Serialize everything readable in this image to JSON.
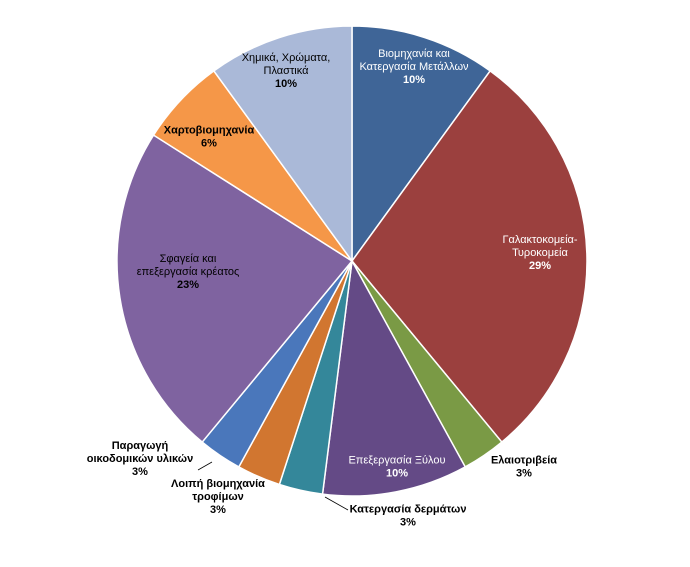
{
  "chart_data": {
    "type": "pie",
    "title": "",
    "slices": [
      {
        "label": "Βιομηχανία και Κατεργασία Μετάλλων",
        "lines": [
          "Βιομηχανία και",
          "Κατεργασία Μετάλλων"
        ],
        "pct_label": "10%",
        "value": 10,
        "color": "#3f6597",
        "label_color": "#ffffff",
        "bold": false
      },
      {
        "label": "Γαλακτοκομεία-Τυροκομεία",
        "lines": [
          "Γαλακτοκομεία-",
          "Τυροκομεία"
        ],
        "pct_label": "29%",
        "value": 29,
        "color": "#9b403e",
        "label_color": "#ffffff",
        "bold": false
      },
      {
        "label": "Ελαιοτριβεία",
        "lines": [
          "Ελαιοτριβεία"
        ],
        "pct_label": "3%",
        "value": 3,
        "color": "#7a9a45",
        "label_color": "#000000",
        "bold": true
      },
      {
        "label": "Επεξεργασία Ξύλου",
        "lines": [
          "Επεξεργασία Ξύλου"
        ],
        "pct_label": "10%",
        "value": 10,
        "color": "#644a86",
        "label_color": "#ffffff",
        "bold": false
      },
      {
        "label": "Κατεργασία δερμάτων",
        "lines": [
          "Κατεργασία δερμάτων"
        ],
        "pct_label": "3%",
        "value": 3,
        "color": "#34879a",
        "label_color": "#000000",
        "bold": true
      },
      {
        "label": "Λοιπή βιομηχανία τροφίμων",
        "lines": [
          "Λοιπή βιομηχανία",
          "τροφίμων"
        ],
        "pct_label": "3%",
        "value": 3,
        "color": "#d17630",
        "label_color": "#000000",
        "bold": true
      },
      {
        "label": "Παραγωγή οικοδομικών υλικών",
        "lines": [
          "Παραγωγή",
          "οικοδομικών υλικών"
        ],
        "pct_label": "3%",
        "value": 3,
        "color": "#4a77bb",
        "label_color": "#000000",
        "bold": true
      },
      {
        "label": "Σφαγεία και επεξεργασία κρέατος",
        "lines": [
          "Σφαγεία και",
          "επεξεργασία κρέατος"
        ],
        "pct_label": "23%",
        "value": 23,
        "color": "#7f63a0",
        "label_color": "#000000",
        "bold": false
      },
      {
        "label": "Χαρτοβιομηχανία",
        "lines": [
          "Χαρτοβιομηχανία"
        ],
        "pct_label": "6%",
        "value": 6,
        "color": "#f59748",
        "label_color": "#000000",
        "bold": true
      },
      {
        "label": "Χημικά, Χρώματα, Πλαστικά",
        "lines": [
          "Χημικά, Χρώματα,",
          "Πλαστικά"
        ],
        "pct_label": "10%",
        "value": 10,
        "color": "#aab9d8",
        "label_color": "#000000",
        "bold": false
      }
    ],
    "legend": "none"
  }
}
